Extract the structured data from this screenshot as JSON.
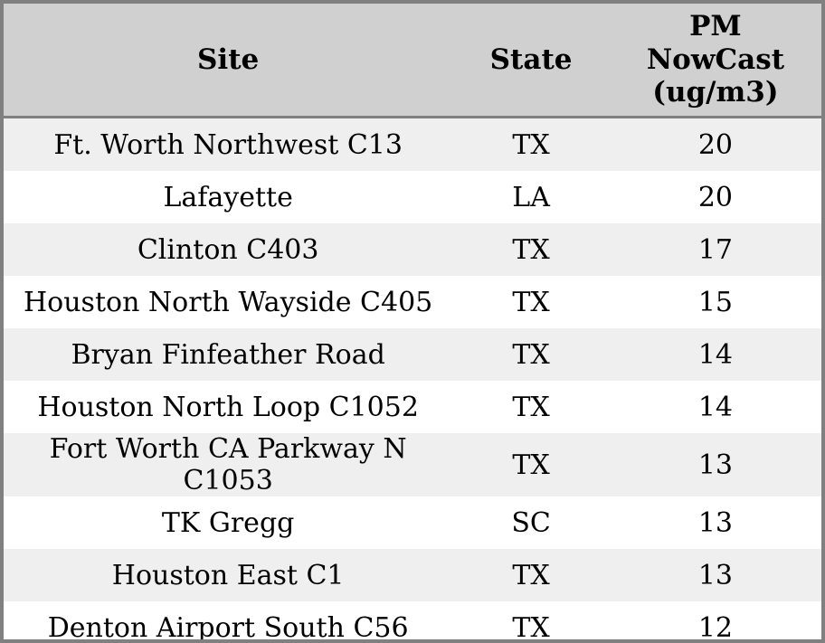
{
  "table": {
    "columns": [
      {
        "label": "Site"
      },
      {
        "label": "State"
      },
      {
        "label": "PM NowCast (ug/m3)",
        "lines": [
          "PM",
          "NowCast",
          "(ug/m3)"
        ]
      }
    ],
    "rows": [
      {
        "site": "Ft. Worth Northwest C13",
        "state": "TX",
        "pm": "20"
      },
      {
        "site": "Lafayette",
        "state": "LA",
        "pm": "20"
      },
      {
        "site": "Clinton C403",
        "state": "TX",
        "pm": "17"
      },
      {
        "site": "Houston North Wayside C405",
        "state": "TX",
        "pm": "15"
      },
      {
        "site": "Bryan Finfeather Road",
        "state": "TX",
        "pm": "14"
      },
      {
        "site": "Houston North Loop C1052",
        "state": "TX",
        "pm": "14"
      },
      {
        "site": "Fort Worth CA Parkway N C1053",
        "state": "TX",
        "pm": "13"
      },
      {
        "site": "TK Gregg",
        "state": "SC",
        "pm": "13"
      },
      {
        "site": "Houston East C1",
        "state": "TX",
        "pm": "13"
      },
      {
        "site": "Denton Airport South C56",
        "state": "TX",
        "pm": "12"
      }
    ]
  },
  "colors": {
    "frame_border": "#808080",
    "header_background": "#d0d0d0",
    "row_stripe": "#efefef",
    "row_plain": "#ffffff",
    "text": "#000000"
  }
}
